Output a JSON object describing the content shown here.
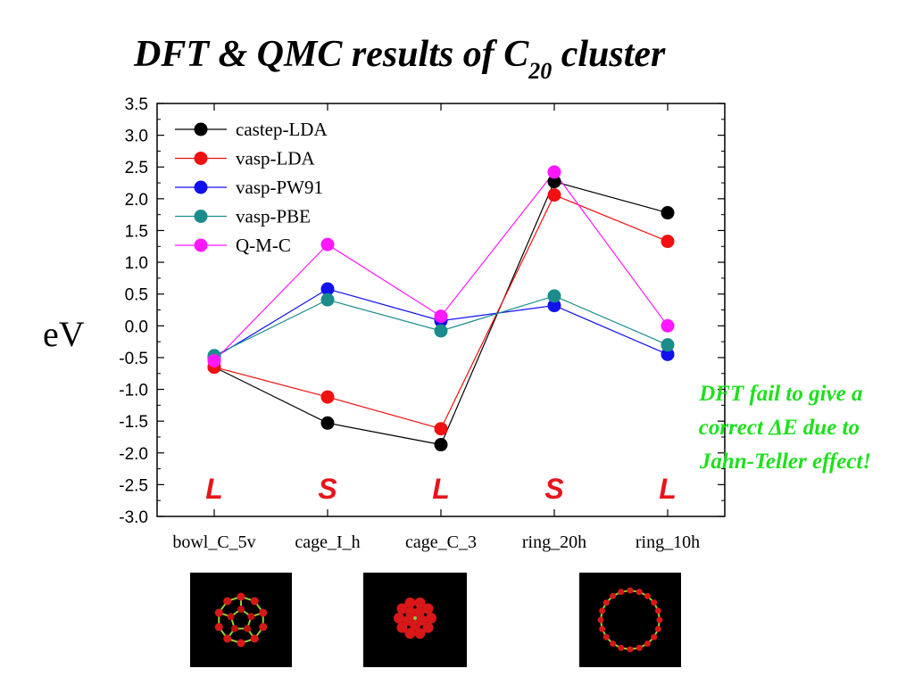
{
  "title": {
    "main": "DFT & QMC results of C",
    "subscript": "20",
    "suffix": " cluster"
  },
  "chart_data": {
    "type": "line",
    "ylabel": "eV",
    "xlabel": "",
    "ylim": [
      -3.0,
      3.5
    ],
    "y_ticks": [
      "3.5",
      "3.0",
      "2.5",
      "2.0",
      "1.5",
      "1.0",
      "0.5",
      "0.0",
      "-0.5",
      "-1.0",
      "-1.5",
      "-2.0",
      "-2.5",
      "-3.0"
    ],
    "categories": [
      "bowl_C_5v",
      "cage_I_h",
      "cage_C_3",
      "ring_20h",
      "ring_10h"
    ],
    "grid": false,
    "legend_position": "top-left",
    "series": [
      {
        "name": "castep-LDA",
        "color": "#000000",
        "values": [
          -0.65,
          -1.53,
          -1.87,
          2.27,
          1.78
        ]
      },
      {
        "name": "vasp-LDA",
        "color": "#f21010",
        "values": [
          -0.65,
          -1.12,
          -1.62,
          2.06,
          1.33
        ]
      },
      {
        "name": "vasp-PW91",
        "color": "#1010f0",
        "values": [
          -0.5,
          0.58,
          0.08,
          0.32,
          -0.45
        ]
      },
      {
        "name": "vasp-PBE",
        "color": "#1a8c8c",
        "values": [
          -0.47,
          0.41,
          -0.08,
          0.47,
          -0.3
        ]
      },
      {
        "name": "Q-M-C",
        "color": "#ff18ff",
        "values": [
          -0.55,
          1.28,
          0.15,
          2.42,
          0.0
        ]
      }
    ],
    "annotations": {
      "category_marks": [
        "L",
        "S",
        "L",
        "S",
        "L"
      ],
      "category_mark_color": "#e8141a",
      "note_lines": [
        "DFT fail to give a",
        "correct ΔE due to",
        "Jahn-Teller effect!"
      ],
      "note_color": "#1ee01e"
    }
  },
  "images": [
    {
      "name": "bowl-cluster-image",
      "structure": "bowl"
    },
    {
      "name": "cage-cluster-image",
      "structure": "cage"
    },
    {
      "name": "ring-cluster-image",
      "structure": "ring"
    }
  ]
}
